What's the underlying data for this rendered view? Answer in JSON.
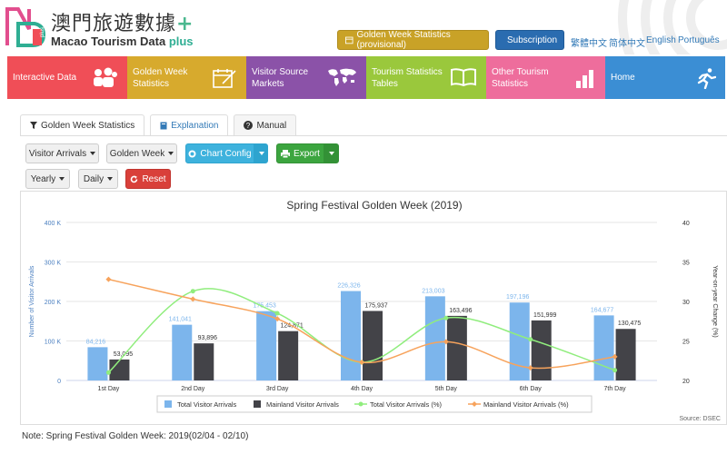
{
  "brand": {
    "name_zh": "澳門旅遊數據",
    "name_zh_plus": "+",
    "name_en": "Macao Tourism Data",
    "name_en_plus": "plus",
    "logo_text": "plus"
  },
  "header": {
    "golden_week_button": "Golden Week Statistics (provisional)",
    "subscription_button": "Subscription",
    "languages": [
      "繁體中文",
      "简体中文",
      "English",
      "Português"
    ]
  },
  "nav_tiles": [
    {
      "label": "Interactive Data",
      "color": "#f04e57",
      "icon": "people-icon"
    },
    {
      "label": "Golden Week Statistics",
      "color": "#d7aa2d",
      "icon": "calendar-edit-icon"
    },
    {
      "label": "Visitor Source Markets",
      "color": "#8b52a8",
      "icon": "world-map-icon"
    },
    {
      "label": "Tourism Statistics Tables",
      "color": "#9ac83c",
      "icon": "book-icon"
    },
    {
      "label": "Other Tourism Statistics",
      "color": "#ee6d9c",
      "icon": "bar-chart-icon"
    },
    {
      "label": "Home",
      "color": "#3b8ed4",
      "icon": "runner-icon"
    }
  ],
  "tabs": [
    {
      "label": "Golden Week Statistics",
      "icon": "filter-icon"
    },
    {
      "label": "Explanation",
      "icon": "book-icon"
    },
    {
      "label": "Manual",
      "icon": "question-icon"
    }
  ],
  "controls": {
    "visitor_arrivals": "Visitor Arrivals",
    "golden_week": "Golden Week",
    "chart_config": "Chart Config",
    "export": "Export",
    "yearly": "Yearly",
    "daily": "Daily",
    "reset": "Reset"
  },
  "chart_data": {
    "type": "bar",
    "title": "Spring Festival Golden Week (2019)",
    "categories": [
      "1st Day",
      "2nd Day",
      "3rd Day",
      "4th Day",
      "5th Day",
      "6th Day",
      "7th Day"
    ],
    "ylabel_left": "Number of Visitor Arrivals",
    "ylabel_right": "Year-on-year Change (%)",
    "yticks_left": [
      "0",
      "100 K",
      "200 K",
      "300 K",
      "400 K"
    ],
    "yticks_right": [
      "20",
      "25",
      "30",
      "35",
      "40"
    ],
    "ylim_left": [
      0,
      400000
    ],
    "ylim_right": [
      20,
      40
    ],
    "series": [
      {
        "name": "Total Visitor Arrivals",
        "kind": "bar",
        "axis": "left",
        "color": "#7cb5ec",
        "values": [
          84216,
          141041,
          175453,
          226326,
          213003,
          197196,
          164677
        ],
        "labels": [
          "84,216",
          "141,041",
          "175,453",
          "226,326",
          "213,003",
          "197,196",
          "164,677"
        ]
      },
      {
        "name": "Mainland Visitor Arrivals",
        "kind": "bar",
        "axis": "left",
        "color": "#434348",
        "values": [
          53095,
          93896,
          124871,
          175937,
          163496,
          151999,
          130475
        ],
        "labels": [
          "53,095",
          "93,896",
          "124,871",
          "175,937",
          "163,496",
          "151,999",
          "130,475"
        ]
      },
      {
        "name": "Total Visitor Arrivals (%)",
        "kind": "spline",
        "axis": "right",
        "color": "#90ed7d",
        "values": [
          21,
          31.3,
          28.5,
          22.3,
          27.9,
          25.2,
          21.3
        ]
      },
      {
        "name": "Mainland Visitor Arrivals (%)",
        "kind": "spline",
        "axis": "right",
        "color": "#f7a35c",
        "values": [
          32.8,
          30.3,
          27.8,
          22.3,
          24.9,
          21.6,
          23
        ]
      }
    ],
    "legend_position": "bottom",
    "credit": "Source: DSEC"
  },
  "note": "Note: Spring Festival Golden Week: 2019(02/04 - 02/10)"
}
